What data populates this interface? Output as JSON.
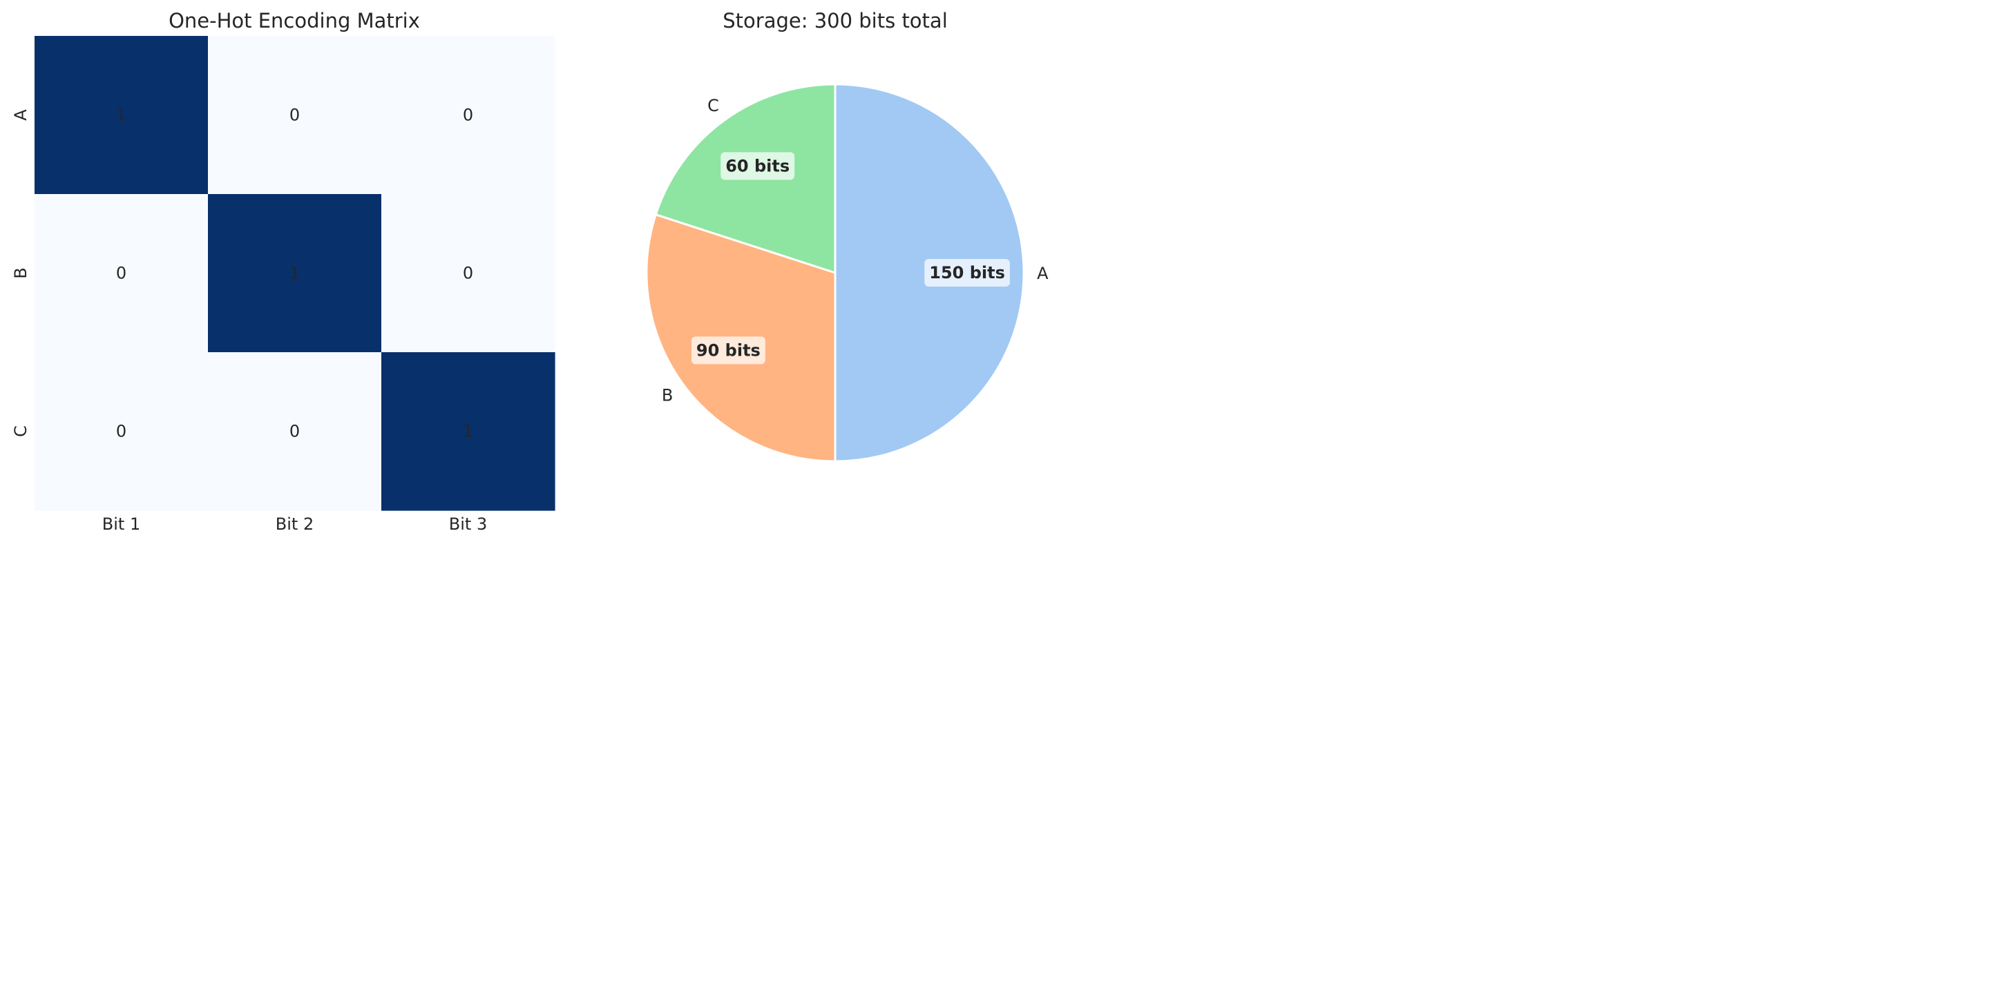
{
  "chart_data": [
    {
      "type": "heatmap",
      "title": "One-Hot Encoding Matrix",
      "x_categories": [
        "Bit 1",
        "Bit 2",
        "Bit 3"
      ],
      "y_categories": [
        "A",
        "B",
        "C"
      ],
      "values": [
        [
          1,
          0,
          0
        ],
        [
          0,
          1,
          0
        ],
        [
          0,
          0,
          1
        ]
      ],
      "colormap": {
        "low": "#f7fbff",
        "high": "#08306b"
      },
      "cell_labels": true,
      "colorbar": false
    },
    {
      "type": "pie",
      "title": "Storage: 300 bits total",
      "labels": [
        "A",
        "B",
        "C"
      ],
      "values": [
        150,
        90,
        60
      ],
      "value_labels": [
        "150 bits",
        "90 bits",
        "60 bits"
      ],
      "colors": [
        "#a1c9f4",
        "#ffb482",
        "#8de5a1"
      ],
      "start_angle_deg": 90,
      "direction": "clockwise"
    }
  ]
}
